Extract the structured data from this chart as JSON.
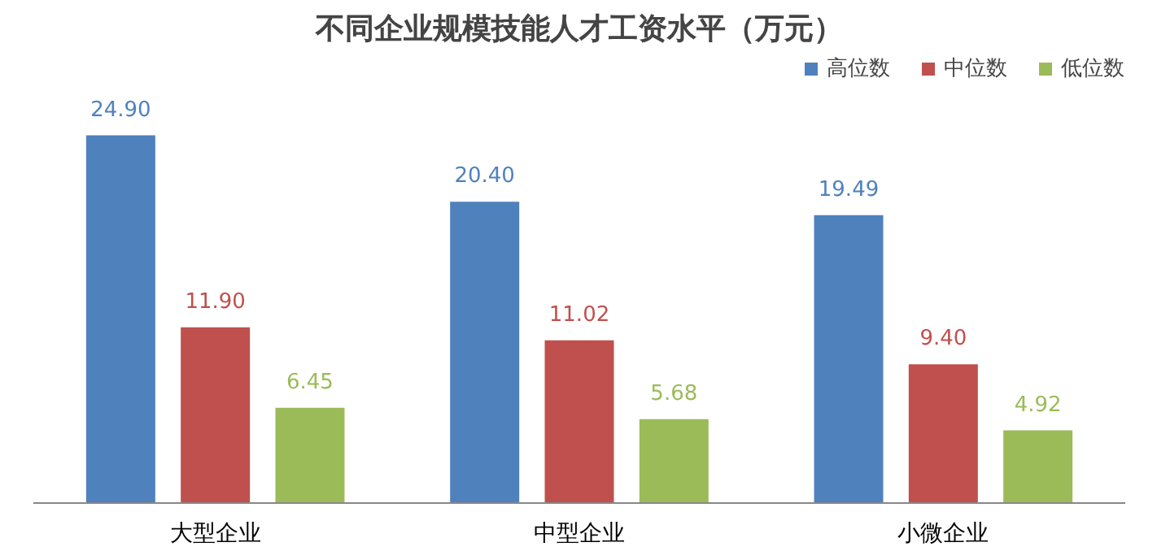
{
  "chart_data": {
    "type": "bar",
    "title": "不同企业规模技能人才工资水平（万元）",
    "categories": [
      "大型企业",
      "中型企业",
      "小微企业"
    ],
    "series": [
      {
        "name": "高位数",
        "color": "#4f81bd",
        "values": [
          24.9,
          20.4,
          19.49
        ],
        "value_labels": [
          "24.90",
          "20.40",
          "19.49"
        ]
      },
      {
        "name": "中位数",
        "color": "#c0504d",
        "values": [
          11.9,
          11.02,
          9.4
        ],
        "value_labels": [
          "11.90",
          "11.02",
          "9.40"
        ]
      },
      {
        "name": "低位数",
        "color": "#9bbb59",
        "values": [
          6.45,
          5.68,
          4.92
        ],
        "value_labels": [
          "6.45",
          "5.68",
          "4.92"
        ]
      }
    ],
    "legend": "top right",
    "grid": false,
    "tick_labels": "x"
  }
}
